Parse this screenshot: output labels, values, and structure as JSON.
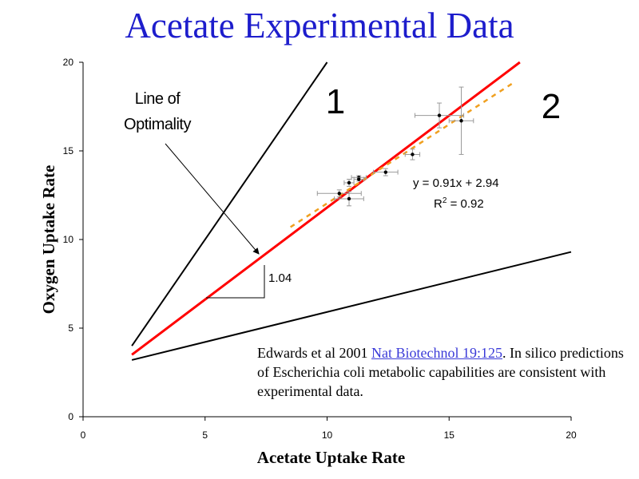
{
  "slide_title": "Acetate Experimental Data",
  "chart_data": {
    "type": "scatter",
    "xlabel": "Acetate Uptake Rate",
    "ylabel": "Oxygen Uptake Rate",
    "xlim": [
      0,
      20
    ],
    "ylim": [
      0,
      20
    ],
    "x_ticks": [
      "0",
      "5",
      "10",
      "15",
      "20"
    ],
    "y_ticks": [
      "0",
      "5",
      "10",
      "15",
      "20"
    ],
    "grid": false,
    "points": [
      {
        "x": 10.5,
        "y": 12.6,
        "xerr": 0.9,
        "yerr": 0.2
      },
      {
        "x": 10.9,
        "y": 13.2,
        "xerr": 0.2,
        "yerr": 0.2
      },
      {
        "x": 10.9,
        "y": 12.3,
        "xerr": 0.6,
        "yerr": 0.4
      },
      {
        "x": 11.3,
        "y": 13.5,
        "xerr": 0.3,
        "yerr": 0.1
      },
      {
        "x": 11.3,
        "y": 13.4,
        "xerr": 0.2,
        "yerr": 0.1
      },
      {
        "x": 12.4,
        "y": 13.8,
        "xerr": 0.5,
        "yerr": 0.2
      },
      {
        "x": 13.5,
        "y": 14.8,
        "xerr": 0.3,
        "yerr": 0.3
      },
      {
        "x": 14.6,
        "y": 17.0,
        "xerr": 1.0,
        "yerr": 0.7
      },
      {
        "x": 15.5,
        "y": 16.7,
        "xerr": 0.5,
        "yerr": 1.9
      }
    ],
    "lines": [
      {
        "role": "boundary-upper",
        "color": "#000000",
        "points": [
          [
            2,
            4.0
          ],
          [
            10,
            20
          ]
        ]
      },
      {
        "role": "boundary-lower",
        "color": "#000000",
        "points": [
          [
            2,
            3.2
          ],
          [
            20,
            9.3
          ]
        ]
      },
      {
        "role": "line-of-optimality",
        "color": "#ff0000",
        "points": [
          [
            2,
            3.5
          ],
          [
            17.9,
            20
          ]
        ]
      },
      {
        "role": "fit",
        "color": "#f0a020",
        "dashed": true,
        "points": [
          [
            8.5,
            10.7
          ],
          [
            17.7,
            18.9
          ]
        ]
      }
    ],
    "annotations": {
      "region_1": "1",
      "region_2": "2",
      "line_of_optimality_line1": "Line of",
      "line_of_optimality_line2": "Optimality",
      "equation": "y = 0.91x + 2.94",
      "r2_prefix": "R",
      "r2_sup": "2",
      "r2_suffix": " = 0.92",
      "slope_label": "1.04"
    }
  },
  "citation": {
    "prefix": "Edwards et al 2001 ",
    "link_text": "Nat Biotechnol 19:125",
    "suffix": ". In silico predictions of Escherichia coli metabolic capabilities are consistent with experimental data."
  }
}
